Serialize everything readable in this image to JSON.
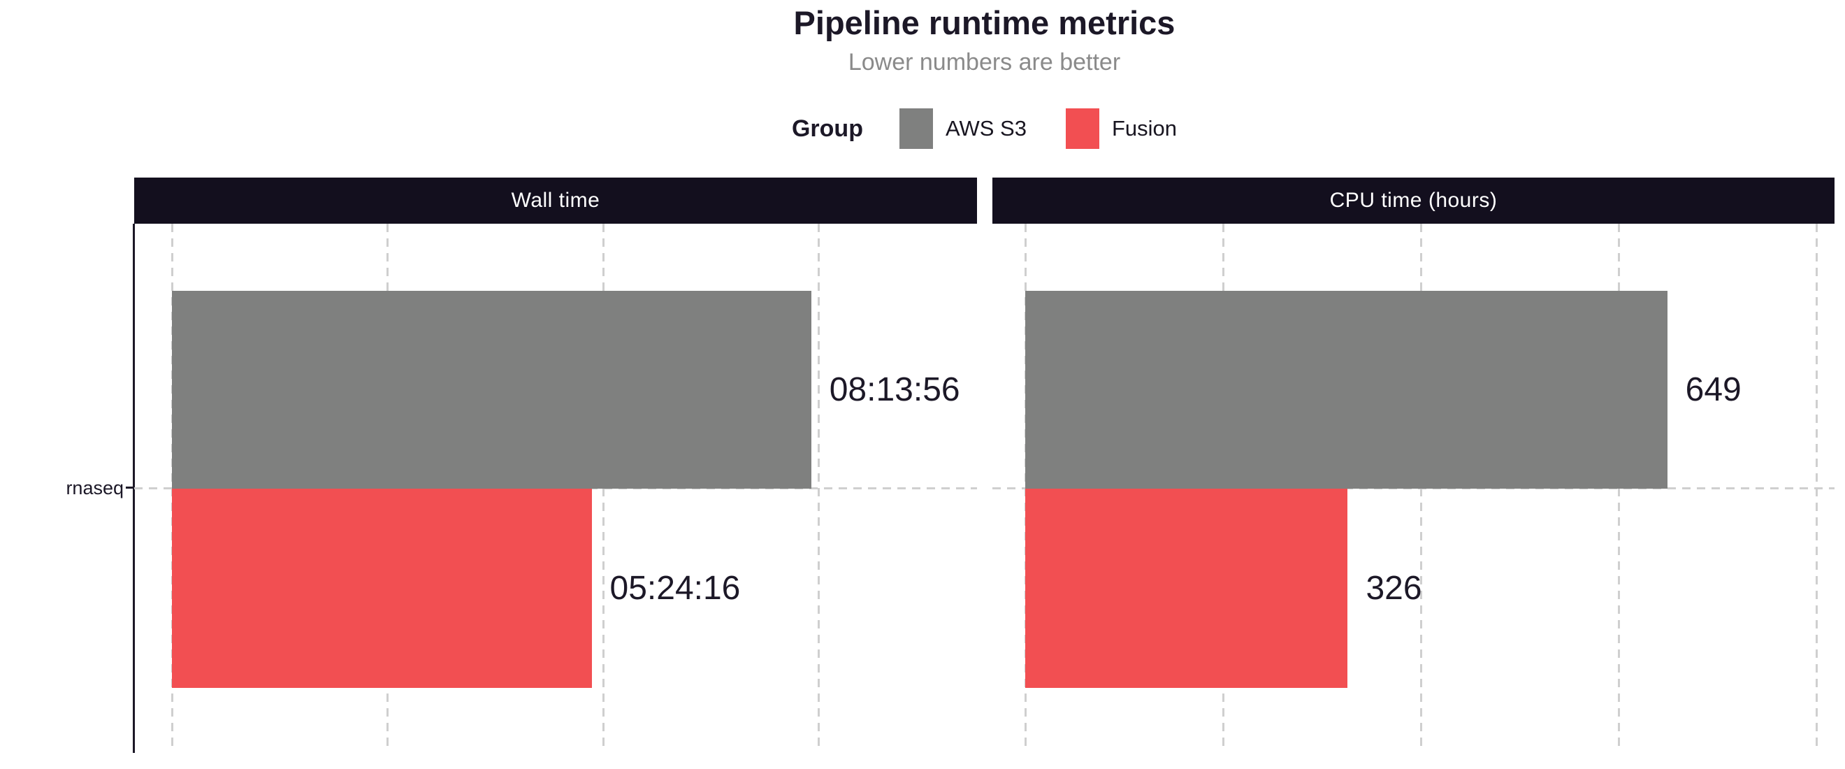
{
  "header": {
    "title": "Pipeline runtime metrics",
    "subtitle": "Lower numbers are better"
  },
  "legend": {
    "title": "Group",
    "entries": [
      {
        "label": "AWS S3",
        "color": "#7f807f"
      },
      {
        "label": "Fusion",
        "color": "#f24f52"
      }
    ]
  },
  "y_axis": {
    "category_label": "rnaseq"
  },
  "colors": {
    "background": "#ffffff",
    "strip_background": "#130f1e",
    "strip_text": "#ffffff",
    "dark_text": "#1c1827",
    "grid": "#cfcfcf",
    "subtitle_text": "#8a8a8a",
    "aws_s3": "#7f807f",
    "fusion": "#f24f52"
  },
  "chart_data": {
    "type": "bar",
    "orientation": "horizontal",
    "title": "Pipeline runtime metrics",
    "subtitle": "Lower numbers are better",
    "legend_title": "Group",
    "legend_position": "top",
    "grid": "dashed major gridlines, white panel background",
    "categories": [
      "rnaseq"
    ],
    "series": [
      {
        "name": "AWS S3",
        "color": "#7f807f"
      },
      {
        "name": "Fusion",
        "color": "#f24f52"
      }
    ],
    "panels": [
      {
        "title": "Wall time",
        "unit": "hh:mm:ss",
        "xlim_seconds": [
          0,
          37300
        ],
        "grid_ticks_seconds": [
          0,
          10000,
          20000,
          30000
        ],
        "bars": [
          {
            "series": "AWS S3",
            "value_seconds": 29636,
            "label": "08:13:56"
          },
          {
            "series": "Fusion",
            "value_seconds": 19456,
            "label": "05:24:16"
          }
        ]
      },
      {
        "title": "CPU time (hours)",
        "unit": "hours",
        "xlim": [
          0,
          818
        ],
        "grid_ticks": [
          0,
          200,
          400,
          600,
          800
        ],
        "bars": [
          {
            "series": "AWS S3",
            "value": 649,
            "label": "649"
          },
          {
            "series": "Fusion",
            "value": 326,
            "label": "326"
          }
        ]
      }
    ]
  }
}
